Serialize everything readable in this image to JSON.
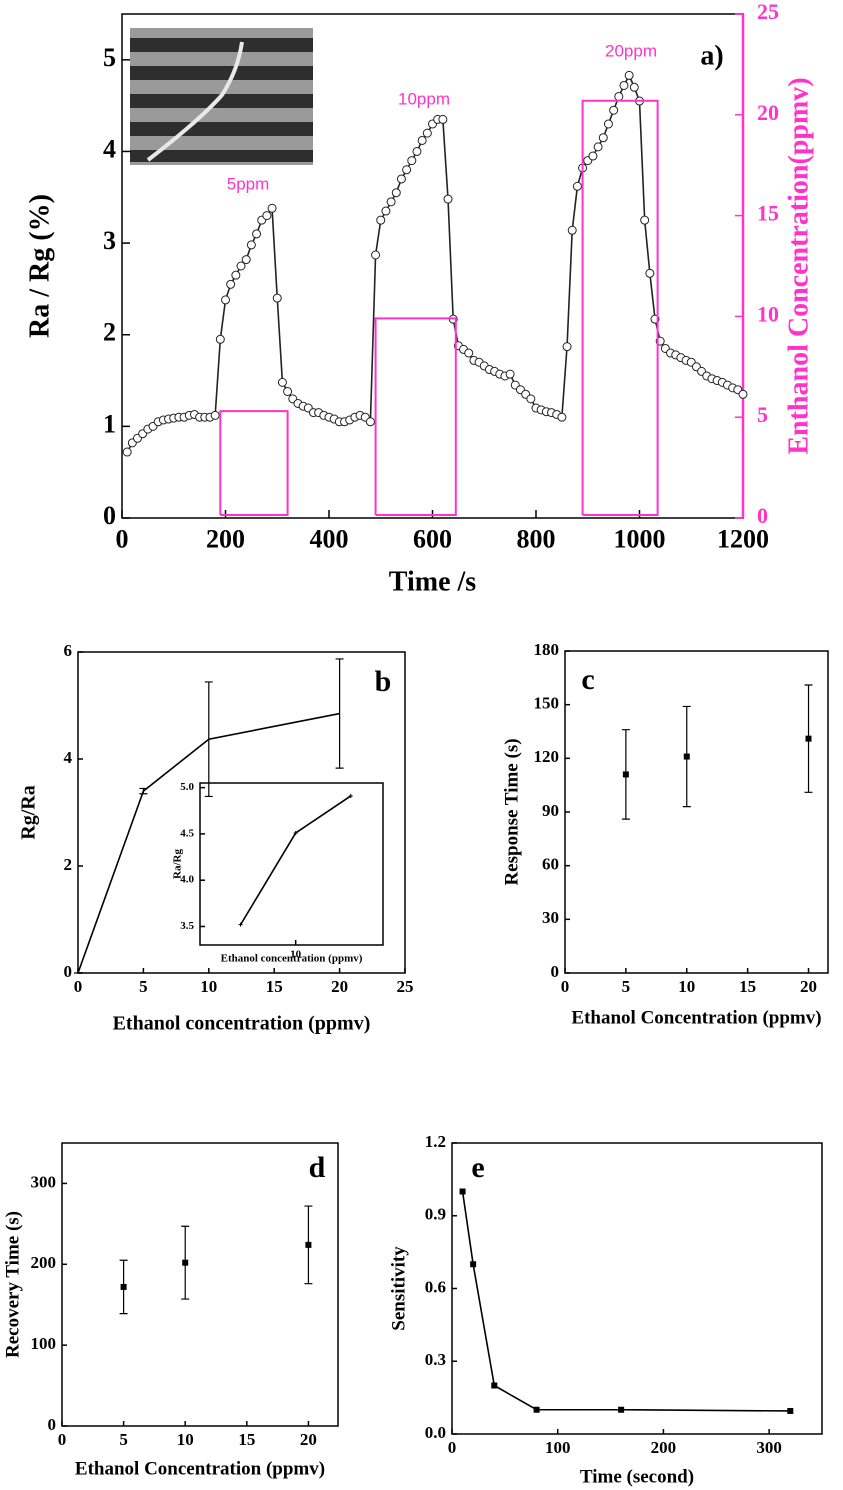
{
  "chart_data": [
    {
      "type": "line",
      "panel_label": "a)",
      "xlabel": "Time /s",
      "ylabel": "Ra / Rg (%)",
      "y2label": "Enthanol Concentration(ppmv)",
      "annotations": [
        "5ppm",
        "10ppm",
        "20ppm"
      ],
      "xlim": [
        0,
        1200
      ],
      "xticks": [
        0,
        200,
        400,
        600,
        800,
        1000,
        1200
      ],
      "ylim": [
        0,
        5.5
      ],
      "yticks": [
        0,
        1,
        2,
        3,
        4,
        5
      ],
      "y2lim": [
        0,
        25
      ],
      "y2ticks": [
        0,
        5,
        10,
        15,
        20,
        25
      ],
      "series": [
        {
          "color": "#222222",
          "marker": "circle",
          "x": [
            10,
            20,
            30,
            40,
            50,
            60,
            70,
            80,
            90,
            100,
            110,
            120,
            130,
            140,
            150,
            160,
            170,
            180,
            190,
            200,
            210,
            220,
            230,
            240,
            250,
            260,
            270,
            280,
            290,
            300,
            310,
            320,
            330,
            340,
            350,
            360,
            370,
            380,
            390,
            400,
            410,
            420,
            430,
            440,
            450,
            460,
            470,
            480,
            490,
            500,
            510,
            520,
            530,
            540,
            550,
            560,
            570,
            580,
            590,
            600,
            610,
            620,
            630,
            640,
            650,
            660,
            670,
            680,
            690,
            700,
            710,
            720,
            730,
            740,
            750,
            760,
            770,
            780,
            790,
            800,
            810,
            820,
            830,
            840,
            850,
            860,
            870,
            880,
            890,
            900,
            910,
            920,
            930,
            940,
            950,
            960,
            970,
            980,
            990,
            1000,
            1010,
            1020,
            1030,
            1040,
            1050,
            1060,
            1070,
            1080,
            1090,
            1100,
            1110,
            1120,
            1130,
            1140,
            1150,
            1160,
            1170,
            1180,
            1190,
            1200
          ],
          "values": [
            0.72,
            0.82,
            0.87,
            0.92,
            0.97,
            1.0,
            1.05,
            1.07,
            1.08,
            1.09,
            1.1,
            1.1,
            1.12,
            1.13,
            1.1,
            1.1,
            1.1,
            1.12,
            1.95,
            2.38,
            2.55,
            2.65,
            2.75,
            2.82,
            2.98,
            3.1,
            3.25,
            3.3,
            3.38,
            2.4,
            1.48,
            1.38,
            1.3,
            1.25,
            1.22,
            1.2,
            1.15,
            1.15,
            1.12,
            1.1,
            1.08,
            1.05,
            1.05,
            1.07,
            1.1,
            1.12,
            1.1,
            1.05,
            2.87,
            3.25,
            3.35,
            3.45,
            3.55,
            3.7,
            3.8,
            3.9,
            4.0,
            4.12,
            4.2,
            4.3,
            4.35,
            4.35,
            3.48,
            2.17,
            1.88,
            1.84,
            1.8,
            1.72,
            1.7,
            1.66,
            1.62,
            1.6,
            1.57,
            1.55,
            1.57,
            1.45,
            1.4,
            1.35,
            1.3,
            1.2,
            1.18,
            1.16,
            1.15,
            1.13,
            1.1,
            1.87,
            3.14,
            3.62,
            3.82,
            3.9,
            3.95,
            4.05,
            4.15,
            4.3,
            4.45,
            4.6,
            4.72,
            4.83,
            4.7,
            4.55,
            3.25,
            2.67,
            2.17,
            1.93,
            1.85,
            1.8,
            1.78,
            1.75,
            1.72,
            1.7,
            1.65,
            1.6,
            1.55,
            1.52,
            1.5,
            1.48,
            1.45,
            1.42,
            1.4,
            1.35
          ]
        },
        {
          "color": "#ff33cc",
          "marker": "none",
          "axis": "y2",
          "x": [
            190,
            190,
            320,
            320,
            190,
            null,
            490,
            490,
            645,
            645,
            490,
            null,
            890,
            890,
            1035,
            1035,
            890
          ],
          "values": [
            0.15,
            5.3,
            5.3,
            0.15,
            0.15,
            null,
            0.15,
            9.9,
            9.9,
            0.15,
            0.15,
            null,
            0.15,
            20.7,
            20.7,
            0.15,
            0.15
          ]
        }
      ]
    },
    {
      "type": "line",
      "panel_label": "b",
      "xlabel": "Ethanol concentration (ppmv)",
      "ylabel": "Rg/Ra",
      "xlim": [
        0,
        25
      ],
      "xticks": [
        0,
        5,
        10,
        15,
        20,
        25
      ],
      "ylim": [
        0,
        6
      ],
      "yticks": [
        0,
        2,
        4,
        6
      ],
      "x": [
        0,
        5,
        10,
        20
      ],
      "series": [
        {
          "color": "#000000",
          "marker": "none",
          "values": [
            0,
            3.4,
            4.37,
            4.85
          ],
          "errors": [
            0,
            0.05,
            1.07,
            1.02
          ]
        }
      ]
    },
    {
      "type": "line",
      "xlabel": "Ethanol concentration (ppmv)",
      "ylabel": "Ra/Rg",
      "xlog": true,
      "xlim": [
        3,
        30
      ],
      "xticks": [
        10
      ],
      "ylim": [
        3.3,
        5.05
      ],
      "yticks": [
        3.5,
        {
          "value": 4,
          "label": "4.0"
        },
        4.5,
        {
          "value": 5,
          "label": "5.0"
        }
      ],
      "x": [
        5,
        10,
        20
      ],
      "series": [
        {
          "color": "#000000",
          "marker": "star",
          "values": [
            3.52,
            4.51,
            4.91
          ]
        }
      ]
    },
    {
      "type": "scatter",
      "panel_label": "c",
      "xlabel": "Ethanol Concentration (ppmv)",
      "ylabel": "Response Time (s)",
      "xlim": [
        0,
        21.6
      ],
      "xticks": [
        0,
        5,
        10,
        15,
        20
      ],
      "ylim": [
        0,
        180
      ],
      "yticks": [
        0,
        30,
        60,
        90,
        120,
        150,
        180
      ],
      "x": [
        5,
        10,
        20
      ],
      "series": [
        {
          "color": "#000000",
          "marker": "square",
          "values": [
            111,
            121,
            131
          ],
          "errors": [
            25,
            28,
            30
          ]
        }
      ]
    },
    {
      "type": "scatter",
      "panel_label": "d",
      "xlabel": "Ethanol Concentration (ppmv)",
      "ylabel": "Recovery Time (s)",
      "xlim": [
        0,
        22.4
      ],
      "xticks": [
        0,
        5,
        10,
        15,
        20
      ],
      "ylim": [
        0,
        350
      ],
      "yticks": [
        0,
        100,
        200,
        300
      ],
      "x": [
        5,
        10,
        20
      ],
      "series": [
        {
          "color": "#000000",
          "marker": "square",
          "values": [
            172,
            202,
            224
          ],
          "errors": [
            33,
            45,
            48
          ]
        }
      ]
    },
    {
      "type": "line",
      "panel_label": "e",
      "xlabel": "Time (second)",
      "ylabel": "Sensitivity",
      "xlim": [
        0,
        350
      ],
      "xticks": [
        0,
        100,
        200,
        300
      ],
      "ylim": [
        0,
        1.2
      ],
      "yticks": [
        {
          "value": 0,
          "label": "0.0"
        },
        0.3,
        0.6,
        0.9,
        1.2
      ],
      "x": [
        10,
        20,
        40,
        80,
        160,
        320
      ],
      "series": [
        {
          "color": "#000000",
          "marker": "square",
          "values": [
            1.0,
            0.7,
            0.2,
            0.1,
            0.1,
            0.095
          ]
        }
      ]
    }
  ]
}
